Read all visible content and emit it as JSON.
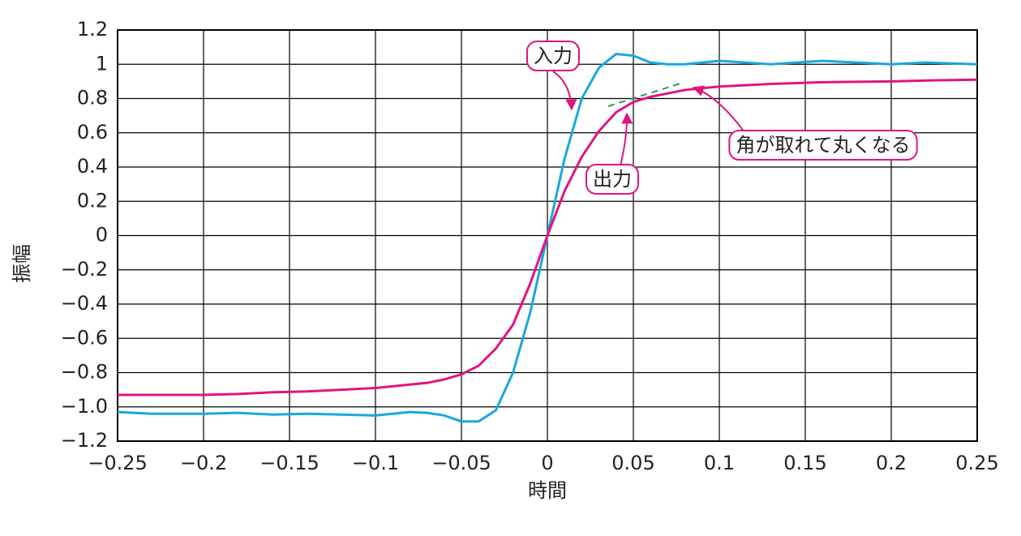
{
  "chart_data": {
    "type": "line",
    "xlabel": "時間",
    "ylabel": "振幅",
    "x": [
      -0.25,
      -0.23,
      -0.2,
      -0.18,
      -0.16,
      -0.14,
      -0.12,
      -0.1,
      -0.08,
      -0.07,
      -0.06,
      -0.05,
      -0.04,
      -0.03,
      -0.02,
      -0.01,
      0,
      0.01,
      0.02,
      0.03,
      0.04,
      0.05,
      0.06,
      0.07,
      0.08,
      0.1,
      0.13,
      0.16,
      0.2,
      0.22,
      0.25
    ],
    "series": [
      {
        "name": "入力",
        "color": "#1aa7e0",
        "values": [
          -1.03,
          -1.04,
          -1.04,
          -1.035,
          -1.045,
          -1.04,
          -1.045,
          -1.05,
          -1.03,
          -1.035,
          -1.05,
          -1.085,
          -1.085,
          -1.02,
          -0.8,
          -0.45,
          0,
          0.45,
          0.8,
          0.98,
          1.06,
          1.05,
          1.01,
          1.0,
          1.0,
          1.02,
          1.0,
          1.02,
          1.0,
          1.01,
          1.0
        ]
      },
      {
        "name": "出力",
        "color": "#e0157f",
        "values": [
          -0.93,
          -0.93,
          -0.93,
          -0.925,
          -0.915,
          -0.91,
          -0.9,
          -0.89,
          -0.87,
          -0.86,
          -0.84,
          -0.81,
          -0.76,
          -0.66,
          -0.52,
          -0.28,
          0,
          0.26,
          0.46,
          0.61,
          0.72,
          0.78,
          0.81,
          0.83,
          0.85,
          0.87,
          0.885,
          0.895,
          0.9,
          0.905,
          0.91
        ]
      }
    ],
    "annotations": [
      "角が取れて丸くなる"
    ],
    "xlim": [
      -0.25,
      0.25
    ],
    "xticks": [
      {
        "value": -0.25,
        "label": "−0.25"
      },
      {
        "value": -0.2,
        "label": "−0.2"
      },
      {
        "value": -0.15,
        "label": "−0.15"
      },
      {
        "value": -0.1,
        "label": "−0.1"
      },
      {
        "value": -0.05,
        "label": "−0.05"
      },
      0,
      0.05,
      0.1,
      0.15,
      0.2,
      0.25
    ],
    "ylim": [
      -1.2,
      1.2
    ],
    "yticks": [
      {
        "value": -1.2,
        "label": "−1.2"
      },
      {
        "value": -1.0,
        "label": "−1.0"
      },
      {
        "value": -0.8,
        "label": "−0.8"
      },
      {
        "value": -0.6,
        "label": "−0.6"
      },
      {
        "value": -0.4,
        "label": "−0.4"
      },
      {
        "value": -0.2,
        "label": "−0.2"
      },
      0,
      0.2,
      0.4,
      0.6,
      0.8,
      1,
      1.2
    ],
    "grid": true
  }
}
